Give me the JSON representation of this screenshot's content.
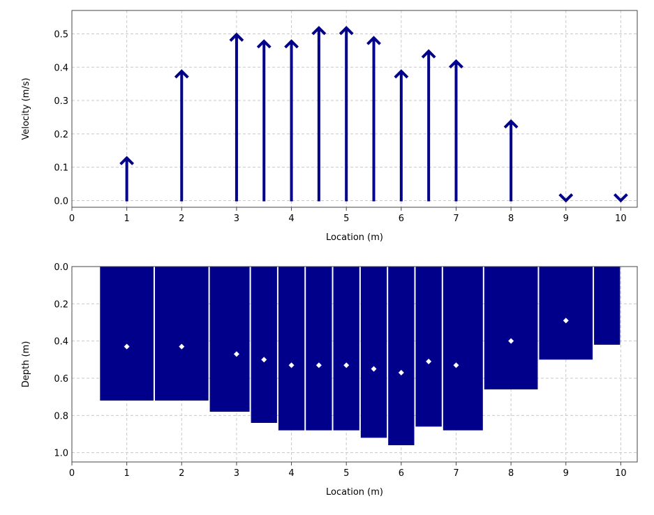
{
  "chart_data": [
    {
      "type": "vector",
      "title": "",
      "xlabel": "Location (m)",
      "ylabel": "Velocity (m/s)",
      "xlim": [
        0,
        10.3
      ],
      "ylim": [
        -0.02,
        0.57
      ],
      "xticks": [
        "0",
        "1",
        "2",
        "3",
        "4",
        "5",
        "6",
        "7",
        "8",
        "9",
        "10"
      ],
      "yticks": [
        "0.0",
        "0.1",
        "0.2",
        "0.3",
        "0.4",
        "0.5"
      ],
      "grid": true,
      "color": "#00008B",
      "series": [
        {
          "x": [
            1,
            2,
            3,
            3.5,
            4,
            4.5,
            5,
            5.5,
            6,
            6.5,
            7,
            8,
            9,
            10
          ],
          "y": [
            0.13,
            0.39,
            0.5,
            0.48,
            0.48,
            0.52,
            0.52,
            0.49,
            0.39,
            0.45,
            0.42,
            0.24,
            0.0,
            0.0
          ]
        }
      ]
    },
    {
      "type": "bar",
      "title": "",
      "xlabel": "Location (m)",
      "ylabel": "Depth (m)",
      "xlim": [
        0,
        10.3
      ],
      "ylim": [
        0,
        1.05
      ],
      "y_inverted": true,
      "xticks": [
        "0",
        "1",
        "2",
        "3",
        "4",
        "5",
        "6",
        "7",
        "8",
        "9",
        "10"
      ],
      "yticks": [
        "0.0",
        "0.2",
        "0.4",
        "0.6",
        "0.8",
        "1.0"
      ],
      "grid": true,
      "color": "#00008B",
      "marker_color": "#ffffff",
      "bars": {
        "x_start": [
          0.5,
          1.5,
          2.5,
          3.25,
          3.75,
          4.25,
          4.75,
          5.25,
          5.75,
          6.25,
          6.75,
          7.5,
          8.5,
          9.5
        ],
        "x_end": [
          1.5,
          2.5,
          3.25,
          3.75,
          4.25,
          4.75,
          5.25,
          5.75,
          6.25,
          6.75,
          7.5,
          8.5,
          9.5,
          10.0
        ],
        "depth": [
          0.72,
          0.72,
          0.78,
          0.84,
          0.88,
          0.88,
          0.88,
          0.92,
          0.96,
          0.86,
          0.88,
          0.66,
          0.5,
          0.42
        ]
      },
      "markers": {
        "x": [
          1,
          2,
          3,
          3.5,
          4,
          4.5,
          5,
          5.5,
          6,
          6.5,
          7,
          8,
          9
        ],
        "y": [
          0.43,
          0.43,
          0.47,
          0.5,
          0.53,
          0.53,
          0.53,
          0.55,
          0.57,
          0.51,
          0.53,
          0.4,
          0.29
        ]
      }
    }
  ]
}
